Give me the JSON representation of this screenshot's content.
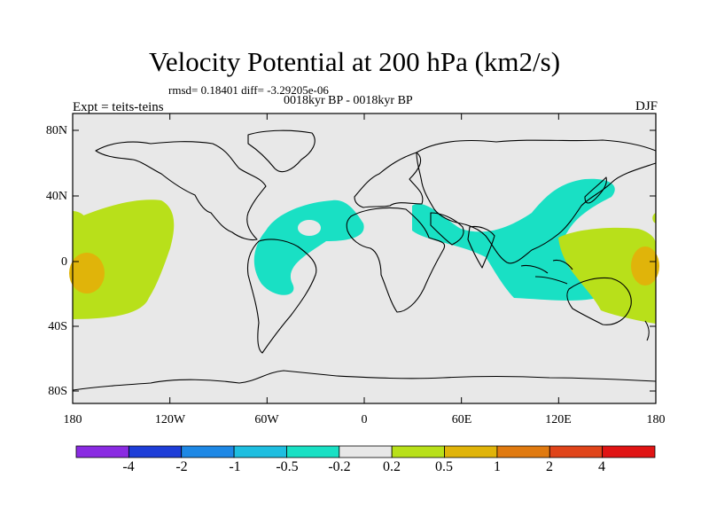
{
  "header": {
    "title": "Velocity Potential at 200 hPa (km2/s)",
    "stats": "rmsd= 0.18401 diff= -3.29205e-06",
    "period": "0018kyr BP - 0018kyr BP",
    "experiment": "Expt = teits-teins",
    "season": "DJF"
  },
  "axes": {
    "lat_labels": [
      "80N",
      "40N",
      "0",
      "40S",
      "80S"
    ],
    "lon_labels": [
      "180",
      "120W",
      "60W",
      "0",
      "60E",
      "120E",
      "180"
    ]
  },
  "colorbar": {
    "labels": [
      "-4",
      "-2",
      "-1",
      "-0.5",
      "-0.2",
      "0.2",
      "0.5",
      "1",
      "2",
      "4"
    ],
    "colors": [
      "#8a2be2",
      "#1e3ed8",
      "#1e88e5",
      "#1ebee0",
      "#19e0c4",
      "#e8e8e8",
      "#b8e01a",
      "#e0b40a",
      "#e07a10",
      "#e0441a",
      "#e01414"
    ]
  },
  "map": {
    "ocean_color": "#e8e8e8",
    "fill_negative_color": "#19e0c4",
    "fill_positive_color": "#b8e01a",
    "fill_strong_positive_color": "#e0b40a"
  }
}
